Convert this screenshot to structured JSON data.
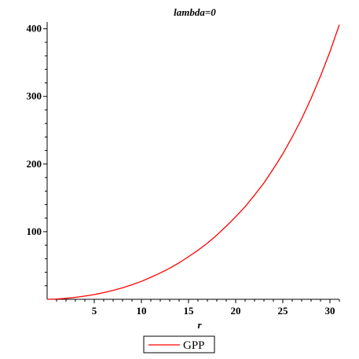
{
  "chart_data": {
    "type": "line",
    "title": "lambda=0",
    "xlabel": "r",
    "ylabel": "",
    "xlim": [
      0,
      31
    ],
    "ylim": [
      0,
      410
    ],
    "x_ticks_major": [
      5,
      10,
      15,
      20,
      25,
      30
    ],
    "y_ticks_major": [
      100,
      200,
      300,
      400
    ],
    "legend_position": "bottom-center",
    "series": [
      {
        "name": "GPP",
        "color": "#ff0000",
        "x": [
          0,
          1,
          2,
          3,
          4,
          5,
          6,
          7,
          8,
          9,
          10,
          11,
          12,
          13,
          14,
          15,
          16,
          17,
          18,
          19,
          20,
          21,
          22,
          23,
          24,
          25,
          26,
          27,
          28,
          29,
          30,
          31
        ],
        "y": [
          0,
          0.4,
          1.4,
          2.9,
          4.8,
          7,
          9.9,
          13.2,
          17,
          21.5,
          26.5,
          32.5,
          39,
          46,
          54,
          63,
          72.5,
          83,
          95,
          108,
          122,
          137,
          154,
          172,
          193,
          215,
          240,
          267,
          297,
          330,
          366,
          406
        ]
      }
    ]
  }
}
